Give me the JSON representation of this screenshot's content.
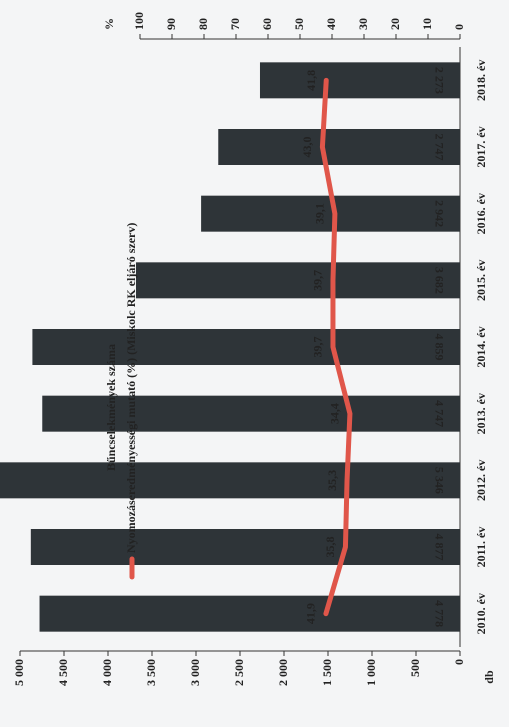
{
  "chart_data": {
    "type": "bar",
    "categories": [
      "2010. év",
      "2011. év",
      "2012. év",
      "2013. év",
      "2014. év",
      "2015. év",
      "2016. év",
      "2017. év",
      "2018. év"
    ],
    "series": [
      {
        "name": "Bűncselekmények száma",
        "type": "bar",
        "color": "#2e3438",
        "values": [
          4778,
          4877,
          5346,
          4747,
          4859,
          3682,
          2942,
          2747,
          2273
        ],
        "value_labels": [
          "4 778",
          "4 877",
          "5 346",
          "4 747",
          "4 859",
          "3 682",
          "2 942",
          "2 747",
          "2 273"
        ]
      },
      {
        "name": "Nyomozáseredményességi mutató (%) (Miskolc RK eljáró szerv)",
        "type": "line",
        "axis": "y2",
        "color": "#e0564a",
        "values": [
          41.9,
          35.8,
          35.3,
          34.4,
          39.7,
          39.7,
          39.1,
          43.0,
          41.8
        ],
        "value_labels": [
          "41,9",
          "35,8",
          "35,3",
          "34,4",
          "39,7",
          "39,7",
          "39,1",
          "43,0",
          "41,8"
        ]
      }
    ],
    "y_label": "db",
    "y2_label": "%",
    "ylim": [
      0,
      5000
    ],
    "yticks": [
      0,
      500,
      {
        "value": 1000,
        "label": "1 000"
      },
      {
        "value": 1500,
        "label": "1 500"
      },
      {
        "value": 2000,
        "label": "2 000"
      },
      {
        "value": 2500,
        "label": "2 500"
      },
      {
        "value": 3000,
        "label": "3 000"
      },
      {
        "value": 3500,
        "label": "3 500"
      },
      {
        "value": 4000,
        "label": "4 000"
      },
      {
        "value": 4500,
        "label": "4 500"
      },
      {
        "value": 5000,
        "label": "5 000"
      }
    ],
    "y2lim": [
      0,
      100
    ],
    "y2ticks": [
      0,
      10,
      20,
      30,
      40,
      50,
      60,
      70,
      80,
      90,
      100
    ]
  }
}
